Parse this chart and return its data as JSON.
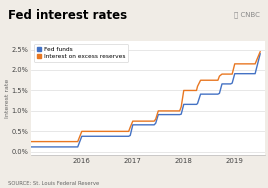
{
  "title": "Fed interest rates",
  "source_text": "SOURCE: St. Louis Federal Reserve",
  "ylabel": "Interest rate",
  "background_color": "#f0ece6",
  "plot_bg_color": "#ffffff",
  "title_color": "#000000",
  "grid_color": "#dddddd",
  "fed_funds_color": "#4472c4",
  "ioer_color": "#e87722",
  "fed_funds_label": "Fed funds",
  "ioer_label": "Interest on excess reserves",
  "yticks": [
    0.0,
    0.005,
    0.01,
    0.015,
    0.02,
    0.025
  ],
  "ytick_labels": [
    "0.0%",
    "0.5%",
    "1.0%",
    "1.5%",
    "2.0%",
    "2.5%"
  ],
  "ylim": [
    -0.0008,
    0.027
  ],
  "fed_funds_x": [
    2015.0,
    2015.08,
    2015.16,
    2015.25,
    2015.33,
    2015.42,
    2015.5,
    2015.58,
    2015.67,
    2015.75,
    2015.83,
    2015.92,
    2016.0,
    2016.08,
    2016.25,
    2016.42,
    2016.58,
    2016.75,
    2016.92,
    2016.95,
    2017.0,
    2017.08,
    2017.25,
    2017.42,
    2017.45,
    2017.5,
    2017.58,
    2017.75,
    2017.92,
    2017.95,
    2018.0,
    2018.08,
    2018.25,
    2018.27,
    2018.33,
    2018.5,
    2018.67,
    2018.7,
    2018.75,
    2018.92,
    2018.95,
    2019.0,
    2019.1,
    2019.4,
    2019.5
  ],
  "fed_funds_y": [
    0.0012,
    0.0012,
    0.0012,
    0.0012,
    0.0012,
    0.0012,
    0.0012,
    0.0012,
    0.0012,
    0.0012,
    0.0012,
    0.0012,
    0.0038,
    0.0038,
    0.0038,
    0.0038,
    0.0038,
    0.0038,
    0.0038,
    0.004,
    0.0066,
    0.0066,
    0.0066,
    0.0066,
    0.007,
    0.0091,
    0.0091,
    0.0091,
    0.0091,
    0.0092,
    0.0116,
    0.0116,
    0.0116,
    0.0118,
    0.0141,
    0.0141,
    0.0141,
    0.0143,
    0.0166,
    0.0166,
    0.0168,
    0.0191,
    0.0191,
    0.0191,
    0.024
  ],
  "ioer_x": [
    2015.0,
    2015.08,
    2015.16,
    2015.25,
    2015.33,
    2015.42,
    2015.5,
    2015.58,
    2015.67,
    2015.75,
    2015.83,
    2015.92,
    2016.0,
    2016.08,
    2016.25,
    2016.42,
    2016.58,
    2016.75,
    2016.92,
    2016.95,
    2017.0,
    2017.08,
    2017.25,
    2017.42,
    2017.45,
    2017.5,
    2017.58,
    2017.75,
    2017.92,
    2017.95,
    2018.0,
    2018.08,
    2018.25,
    2018.27,
    2018.33,
    2018.5,
    2018.67,
    2018.7,
    2018.75,
    2018.92,
    2018.95,
    2019.0,
    2019.1,
    2019.4,
    2019.5
  ],
  "ioer_y": [
    0.0025,
    0.0025,
    0.0025,
    0.0025,
    0.0025,
    0.0025,
    0.0025,
    0.0025,
    0.0025,
    0.0025,
    0.0025,
    0.0025,
    0.005,
    0.005,
    0.005,
    0.005,
    0.005,
    0.005,
    0.005,
    0.006,
    0.0075,
    0.0075,
    0.0075,
    0.0075,
    0.008,
    0.01,
    0.01,
    0.01,
    0.01,
    0.011,
    0.015,
    0.015,
    0.015,
    0.016,
    0.0175,
    0.0175,
    0.0175,
    0.0185,
    0.019,
    0.019,
    0.019,
    0.0215,
    0.0215,
    0.0215,
    0.0245
  ],
  "xticks": [
    2016,
    2017,
    2018,
    2019
  ],
  "xlim": [
    2015.0,
    2019.6
  ]
}
